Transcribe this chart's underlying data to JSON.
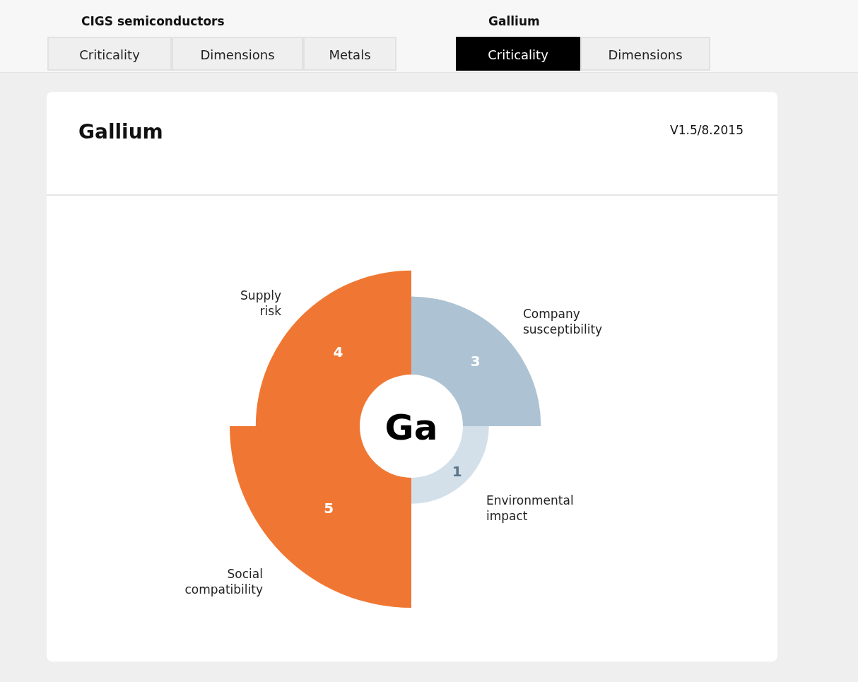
{
  "chart_data": {
    "type": "other",
    "title": "Gallium",
    "categories": [
      "Company susceptibility",
      "Environmental impact",
      "Social compatibility",
      "Supply risk"
    ],
    "values": [
      3,
      1,
      5,
      4
    ],
    "colors": [
      "#adc3d3",
      "#d4e0e9",
      "#f07733",
      "#f07733"
    ],
    "data_labels": true,
    "annotations": [
      "CIGS semiconductors",
      "Criticality",
      "Dimensions",
      "Metals",
      "Gallium",
      "Criticality",
      "Dimensions",
      "V1.5/8.2015",
      "Ga"
    ]
  }
}
